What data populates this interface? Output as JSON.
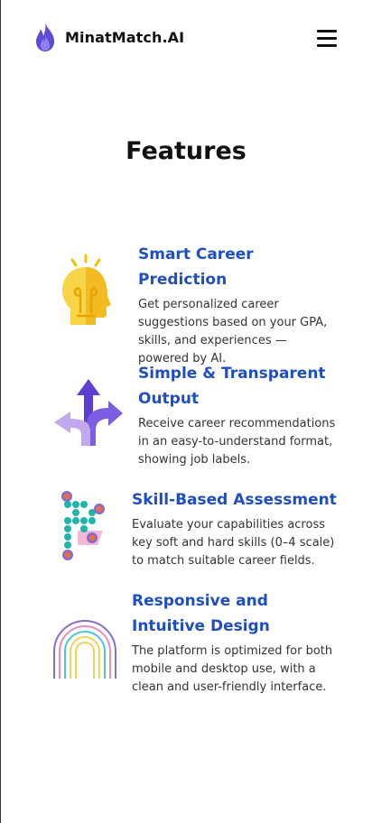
{
  "brand": {
    "name": "MinatMatch.AI",
    "logo_icon": "flame-icon"
  },
  "nav": {
    "menu_icon": "hamburger-menu-icon"
  },
  "section": {
    "title": "Features"
  },
  "features": [
    {
      "icon": "lightbulb-head-icon",
      "title": "Smart Career Prediction",
      "description": "Get personalized career suggestions based on your GPA, skills, and experiences — powered by AI."
    },
    {
      "icon": "split-arrows-icon",
      "title": "Simple & Transparent Output",
      "description": "Receive career recommendations in an easy-to-understand format, showing job labels."
    },
    {
      "icon": "skill-network-icon",
      "title": "Skill-Based Assessment",
      "description": "Evaluate your capabilities across key soft and hard skills (0–4 scale) to match suitable career fields."
    },
    {
      "icon": "rainbow-arch-icon",
      "title": "Responsive and Intuitive Design",
      "description": "The platform is optimized for both mobile and desktop use, with a clean and user-friendly interface."
    }
  ],
  "colors": {
    "accent": "#1f4fbf",
    "logo": "#5b4bd6"
  }
}
